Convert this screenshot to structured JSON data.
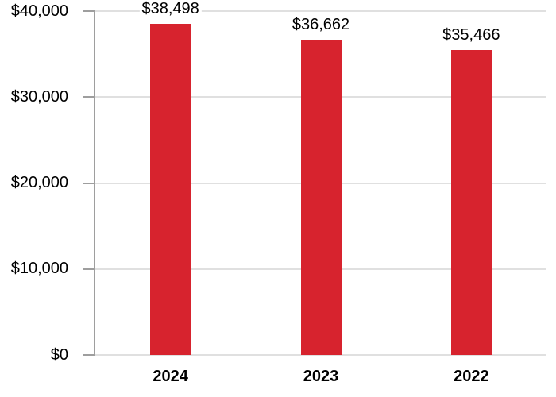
{
  "chart_data": {
    "type": "bar",
    "categories": [
      "2024",
      "2023",
      "2022"
    ],
    "values": [
      38498,
      36662,
      35466
    ],
    "value_labels": [
      "$38,498",
      "$36,662",
      "$35,466"
    ],
    "title": "",
    "xlabel": "",
    "ylabel": "",
    "ylim": [
      0,
      40000
    ],
    "ytick_step": 10000,
    "ytick_labels": [
      "$0",
      "$10,000",
      "$20,000",
      "$30,000",
      "$40,000"
    ],
    "grid": true,
    "legend_position": "none",
    "bar_color": "#d7232e"
  },
  "colors": {
    "bar": "#d7232e",
    "axis": "#9e9e9e",
    "gridline": "#e0e0e0",
    "text": "#000000",
    "background": "#ffffff"
  }
}
